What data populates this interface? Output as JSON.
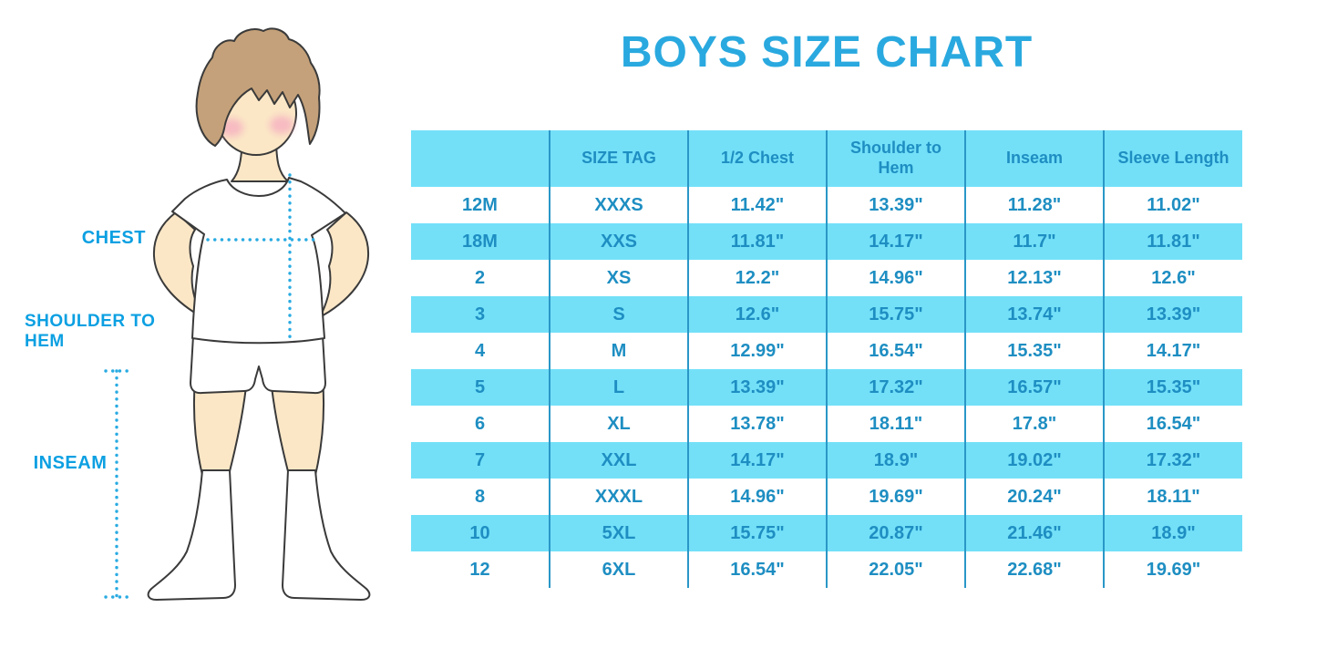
{
  "title": "BOYS SIZE CHART",
  "figure": {
    "illustration": "boy-measurement-figure",
    "labels": {
      "chest": "CHEST",
      "shoulder_to_hem": "SHOULDER TO HEM",
      "inseam": "INSEAM"
    }
  },
  "chart_data": {
    "type": "table",
    "title": "BOYS SIZE CHART",
    "columns": [
      "",
      "SIZE TAG",
      "1/2 Chest",
      "Shoulder to Hem",
      "Inseam",
      "Sleeve Length"
    ],
    "rows": [
      [
        "12M",
        "XXXS",
        "11.42\"",
        "13.39\"",
        "11.28\"",
        "11.02\""
      ],
      [
        "18M",
        "XXS",
        "11.81\"",
        "14.17\"",
        "11.7\"",
        "11.81\""
      ],
      [
        "2",
        "XS",
        "12.2\"",
        "14.96\"",
        "12.13\"",
        "12.6\""
      ],
      [
        "3",
        "S",
        "12.6\"",
        "15.75\"",
        "13.74\"",
        "13.39\""
      ],
      [
        "4",
        "M",
        "12.99\"",
        "16.54\"",
        "15.35\"",
        "14.17\""
      ],
      [
        "5",
        "L",
        "13.39\"",
        "17.32\"",
        "16.57\"",
        "15.35\""
      ],
      [
        "6",
        "XL",
        "13.78\"",
        "18.11\"",
        "17.8\"",
        "16.54\""
      ],
      [
        "7",
        "XXL",
        "14.17\"",
        "18.9\"",
        "19.02\"",
        "17.32\""
      ],
      [
        "8",
        "XXXL",
        "14.96\"",
        "19.69\"",
        "20.24\"",
        "18.11\""
      ],
      [
        "10",
        "5XL",
        "15.75\"",
        "20.87\"",
        "21.46\"",
        "18.9\""
      ],
      [
        "12",
        "6XL",
        "16.54\"",
        "22.05\"",
        "22.68\"",
        "19.69\""
      ]
    ],
    "row_striping": "white / light-cyan alternating, header light-cyan",
    "grid": "vertical separators only"
  },
  "colors": {
    "title": "#29A9DF",
    "band": "#73E0F8",
    "table_text": "#1E8EC2",
    "separator": "#2A97C7",
    "label_text": "#0CA0E2",
    "dotted_line": "#29ABE2",
    "skin": "#FBE7C6",
    "hair": "#C4A17A",
    "blush": "#F5A8C0",
    "outline": "#3A3A3A"
  }
}
